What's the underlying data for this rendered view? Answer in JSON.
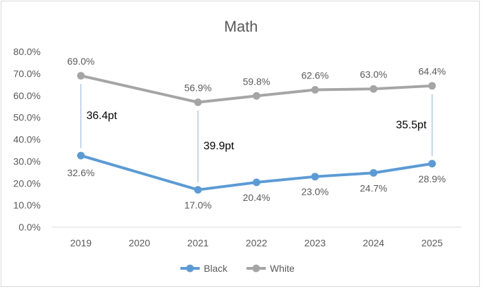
{
  "chart_data": {
    "type": "line",
    "title": "Math",
    "x": [
      "2019",
      "2020",
      "2021",
      "2022",
      "2023",
      "2024",
      "2025"
    ],
    "ylim": [
      0,
      80
    ],
    "yticks": [
      "0.0%",
      "10.0%",
      "20.0%",
      "30.0%",
      "40.0%",
      "50.0%",
      "60.0%",
      "70.0%",
      "80.0%"
    ],
    "grid": false,
    "legend": "bottom",
    "series": [
      {
        "name": "Black",
        "color": "#5b9bd5",
        "values": [
          32.6,
          null,
          17.0,
          20.4,
          23.0,
          24.7,
          28.9
        ],
        "labels": [
          "32.6%",
          "",
          "17.0%",
          "20.4%",
          "23.0%",
          "24.7%",
          "28.9%"
        ]
      },
      {
        "name": "White",
        "color": "#a5a5a5",
        "values": [
          69.0,
          null,
          56.9,
          59.8,
          62.6,
          63.0,
          64.4
        ],
        "labels": [
          "69.0%",
          "",
          "56.9%",
          "59.8%",
          "62.6%",
          "63.0%",
          "64.4%"
        ]
      }
    ],
    "annotations": [
      {
        "x": "2019",
        "text": "36.4pt"
      },
      {
        "x": "2021",
        "text": "39.9pt"
      },
      {
        "x": "2025",
        "text": "35.5pt"
      }
    ]
  }
}
